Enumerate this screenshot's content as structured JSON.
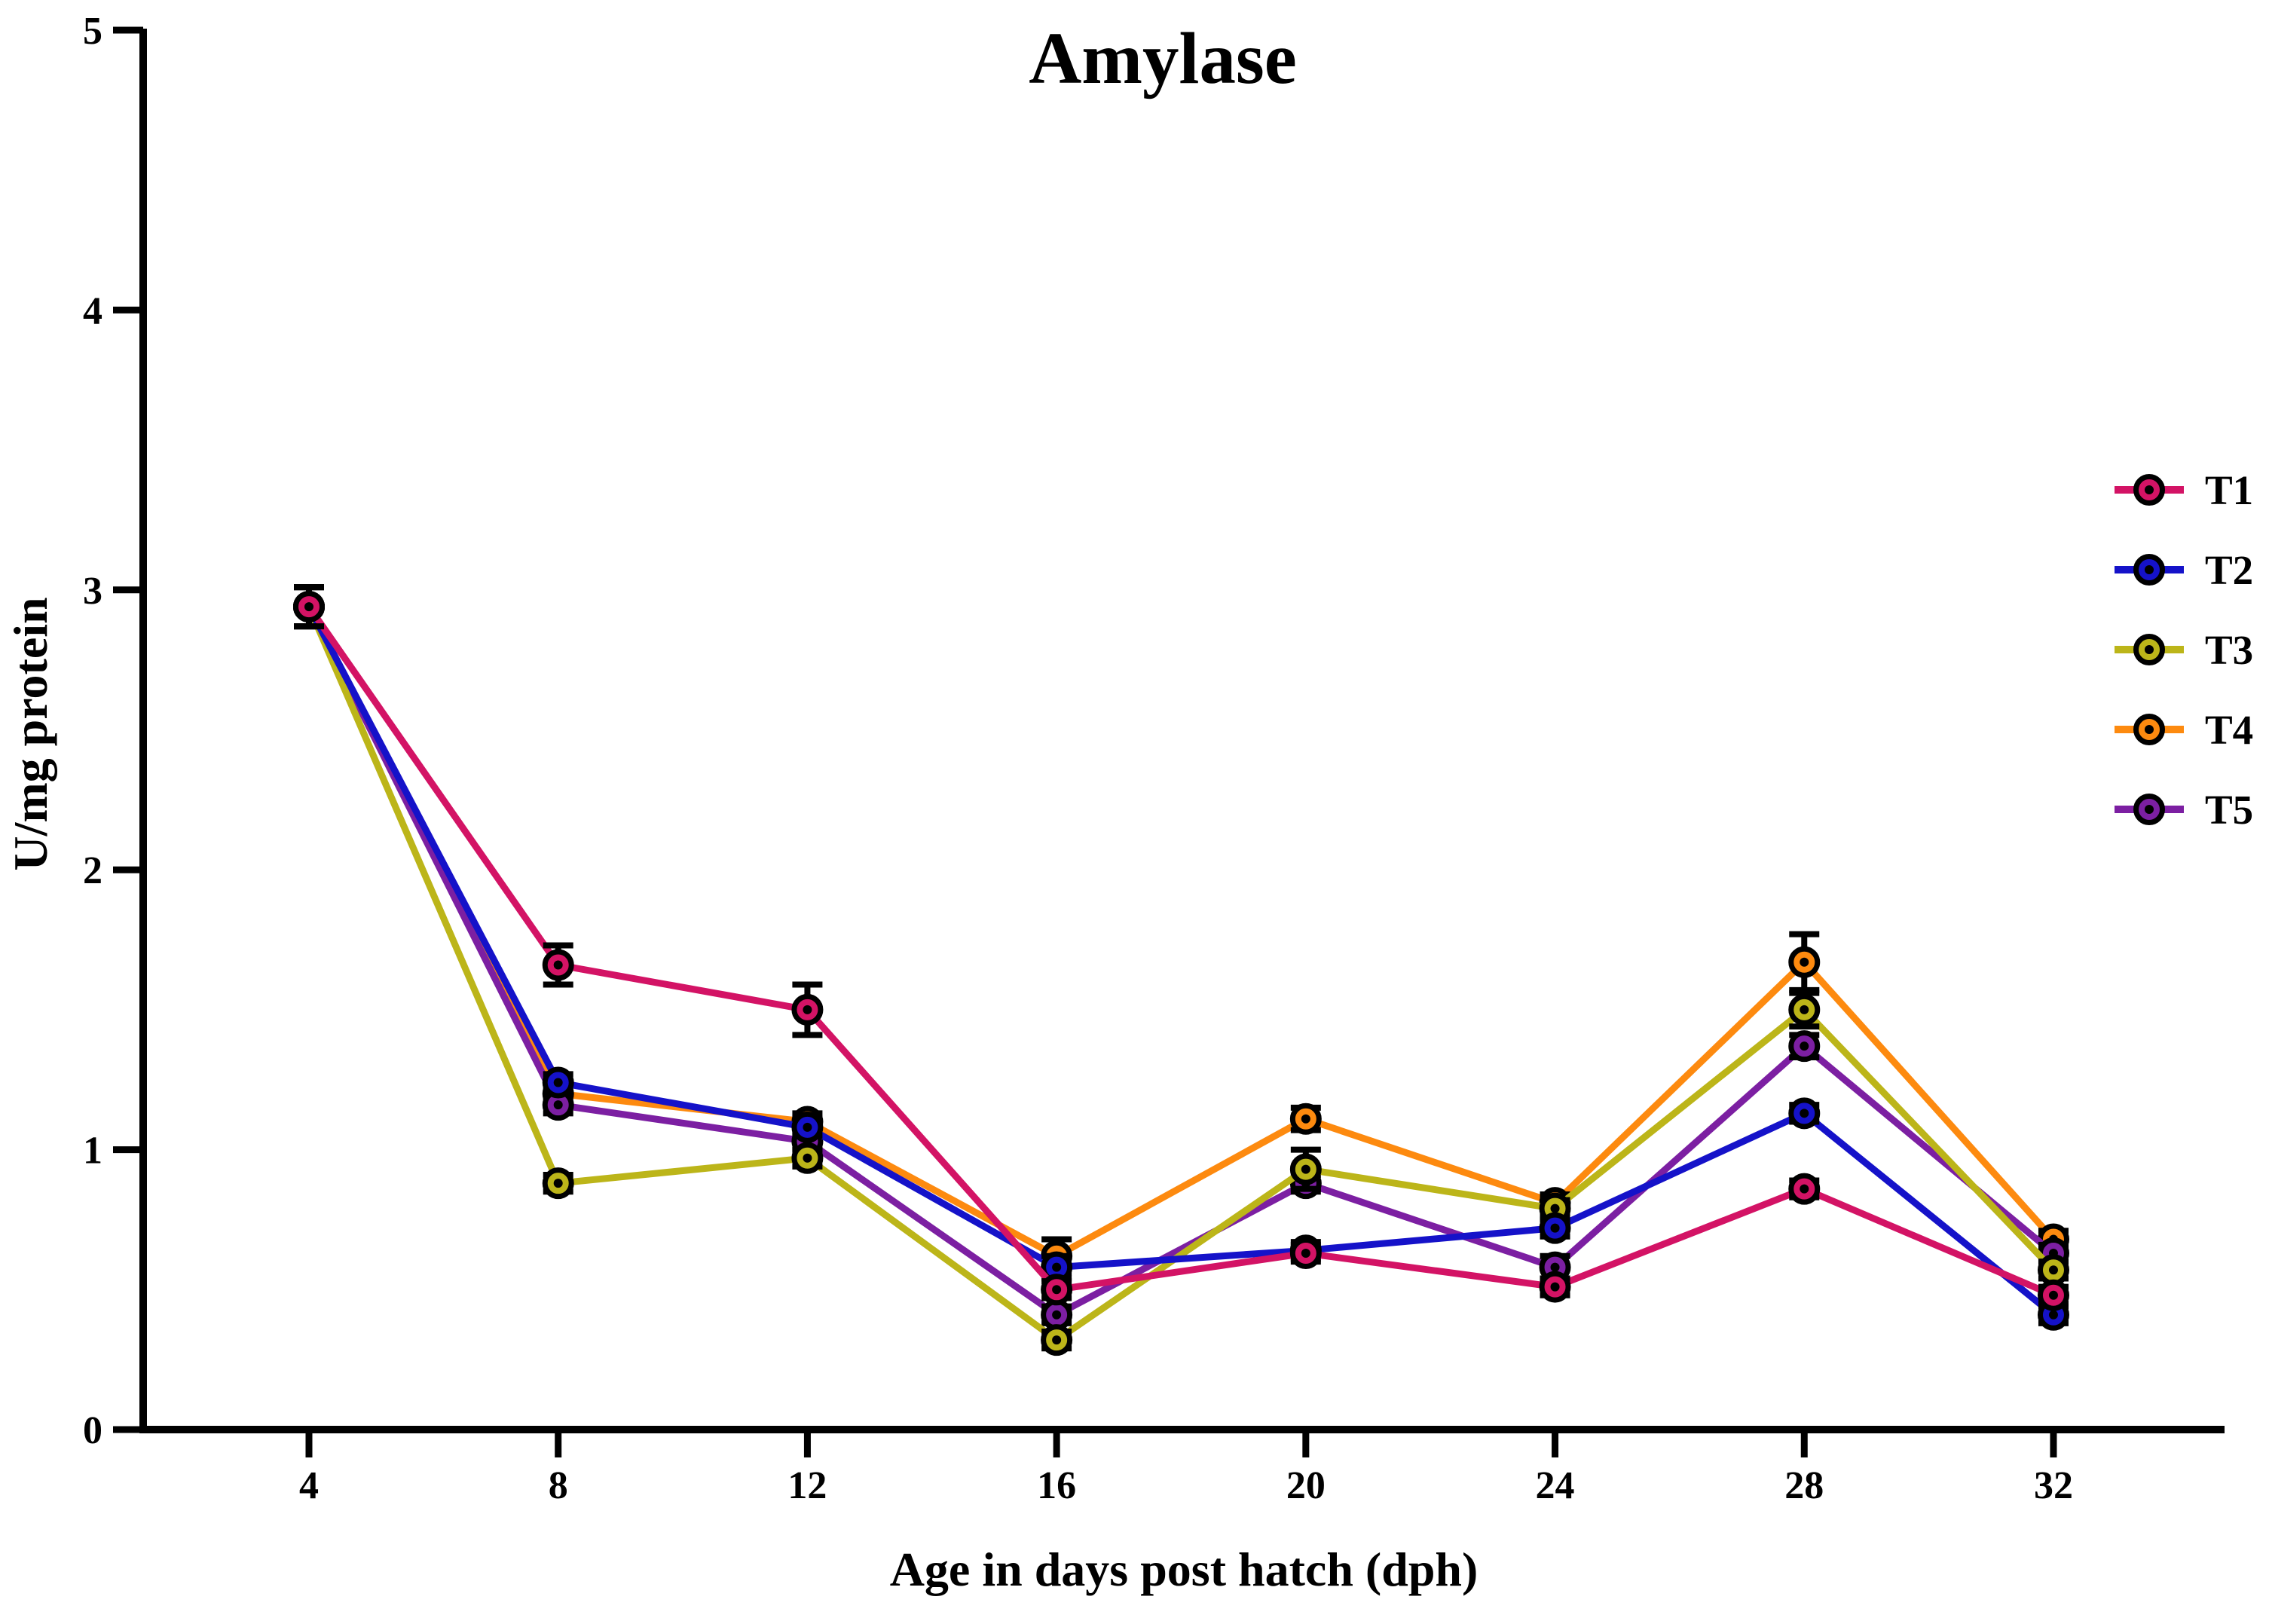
{
  "chart_data": {
    "type": "line",
    "title": "Amylase",
    "xlabel": "Age in days post hatch (dph)",
    "ylabel": "U/mg protein",
    "x": [
      4,
      8,
      12,
      16,
      20,
      24,
      28,
      32
    ],
    "xticklabels": [
      "4",
      "8",
      "12",
      "16",
      "20",
      "24",
      "28",
      "32"
    ],
    "yticks": [
      0,
      1,
      2,
      3,
      4,
      5
    ],
    "yticklabels": [
      "0",
      "1",
      "2",
      "3",
      "4",
      "5"
    ],
    "ylim": [
      0,
      5
    ],
    "grid": false,
    "legend_position": "right",
    "axis_color": "#000000",
    "error_bar_color": "#000000",
    "series": [
      {
        "name": "T1",
        "color": "#D31365",
        "values": [
          2.94,
          1.66,
          1.5,
          0.5,
          0.63,
          0.51,
          0.86,
          0.48
        ],
        "errors": [
          0.07,
          0.07,
          0.09,
          0.03,
          0.03,
          0.03,
          0.03,
          0.03
        ]
      },
      {
        "name": "T2",
        "color": "#1512C9",
        "values": [
          2.94,
          1.24,
          1.08,
          0.58,
          0.64,
          0.72,
          1.13,
          0.41
        ],
        "errors": [
          0.07,
          0.03,
          0.03,
          0.04,
          0.03,
          0.03,
          0.03,
          0.03
        ]
      },
      {
        "name": "T3",
        "color": "#BCB519",
        "values": [
          2.94,
          0.88,
          0.97,
          0.32,
          0.93,
          0.79,
          1.5,
          0.57
        ],
        "errors": [
          0.07,
          0.03,
          0.03,
          0.03,
          0.07,
          0.03,
          0.06,
          0.03
        ]
      },
      {
        "name": "T4",
        "color": "#FD8A0F",
        "values": [
          2.94,
          1.2,
          1.1,
          0.62,
          1.11,
          0.81,
          1.67,
          0.68
        ],
        "errors": [
          0.07,
          0.03,
          0.03,
          0.06,
          0.04,
          0.03,
          0.1,
          0.03
        ]
      },
      {
        "name": "T5",
        "color": "#7C1FA2",
        "values": [
          2.94,
          1.16,
          1.03,
          0.41,
          0.88,
          0.58,
          1.37,
          0.63
        ],
        "errors": [
          0.07,
          0.03,
          0.03,
          0.03,
          0.03,
          0.04,
          0.04,
          0.03
        ]
      }
    ]
  }
}
